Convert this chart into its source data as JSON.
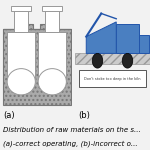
{
  "bg_color": "#eeeeee",
  "reactor_fill": "#aaaaaa",
  "reactor_edge": "#777777",
  "silo_white": "#ffffff",
  "silo_edge": "#999999",
  "truck_color": "#4a7fc1",
  "truck_edge": "#2255aa",
  "ground_fill": "#cccccc",
  "ground_edge": "#999999",
  "wheel_color": "#222222",
  "sign_fill": "#ffffff",
  "sign_edge": "#666666",
  "warning_text": "Don't stoke too deep in the kiln",
  "label_a": "(a)",
  "label_b": "(b)",
  "caption1": "Distribution of raw materials on the s...",
  "caption2": "(a)-correct operating, (b)-incorrect o...",
  "fontsize_small": 5.0,
  "fontsize_label": 6.0
}
